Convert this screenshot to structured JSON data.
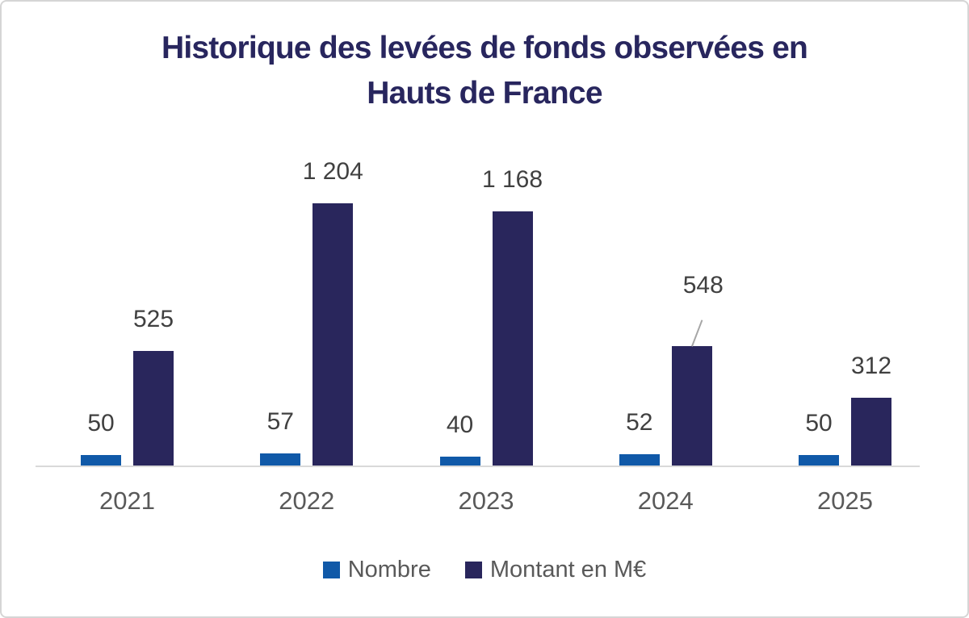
{
  "title": {
    "line1": "Historique des levées de fonds observées en",
    "line2": "Hauts de France",
    "color": "#28265e"
  },
  "chart_data": {
    "type": "bar",
    "title": "Historique des levées de fonds observées en Hauts de France",
    "categories": [
      "2021",
      "2022",
      "2023",
      "2024",
      "2025"
    ],
    "series": [
      {
        "name": "Nombre",
        "color": "#1059a8",
        "values": [
          50,
          57,
          40,
          52,
          50
        ],
        "labels": [
          "50",
          "57",
          "40",
          "52",
          "50"
        ]
      },
      {
        "name": "Montant en M€",
        "color": "#29265c",
        "values": [
          525,
          1204,
          1168,
          548,
          312
        ],
        "labels": [
          "525",
          "1 204",
          "1 168",
          "548",
          "312"
        ]
      }
    ],
    "ylim": [
      0,
      1204
    ],
    "grid": false,
    "legend_position": "bottom",
    "axis_line_color": "#d9d9d9",
    "value_label_color": "#404040",
    "category_label_color": "#595959",
    "annotations": [
      {
        "series": "Montant en M€",
        "category": "2024",
        "label": "548",
        "leader_line": true,
        "leader_line_color": "#a6a6a6"
      }
    ]
  },
  "legend": {
    "items": [
      {
        "label": "Nombre",
        "color": "#1059a8"
      },
      {
        "label": "Montant en M€",
        "color": "#29265c"
      }
    ]
  }
}
